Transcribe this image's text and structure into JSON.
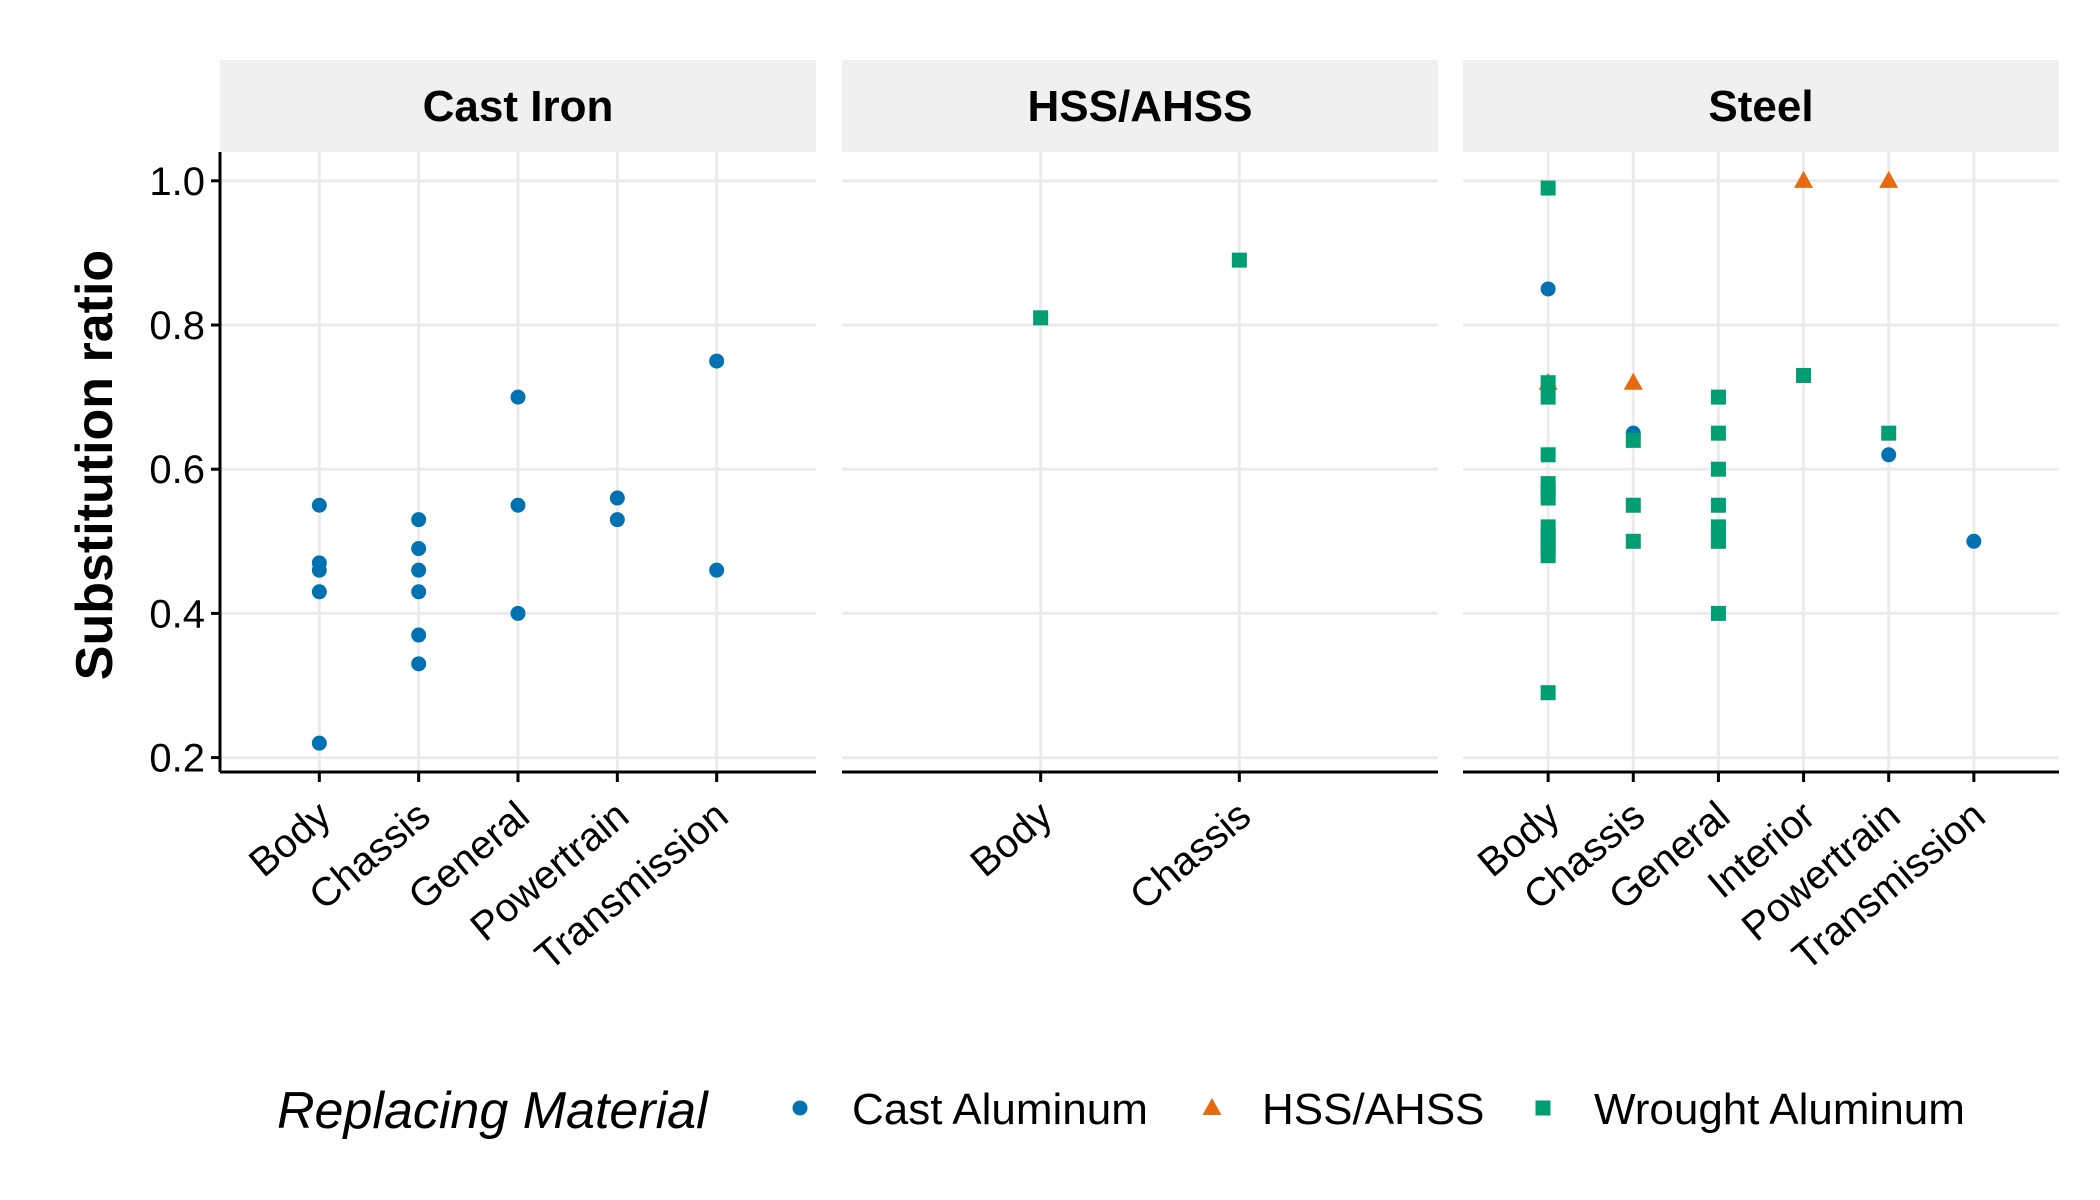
{
  "chart_data": {
    "type": "scatter",
    "ylabel": "Substitution ratio",
    "ylim": [
      0.18,
      1.04
    ],
    "y_ticks": [
      "0.2",
      "0.4",
      "0.6",
      "0.8",
      "1.0"
    ],
    "grid": true,
    "legend": {
      "title": "Replacing Material",
      "position": "bottom",
      "items": [
        {
          "name": "Cast Aluminum",
          "shape": "circle",
          "color": "#0072B2"
        },
        {
          "name": "HSS/AHSS",
          "shape": "triangle",
          "color": "#E66A0F"
        },
        {
          "name": "Wrought Aluminum",
          "shape": "square",
          "color": "#009E73"
        }
      ]
    },
    "facets": [
      {
        "title": "Cast Iron",
        "categories": [
          "Body",
          "Chassis",
          "General",
          "Powertrain",
          "Transmission"
        ],
        "points": [
          {
            "x": "Body",
            "y": 0.55,
            "series": "Cast Aluminum"
          },
          {
            "x": "Body",
            "y": 0.47,
            "series": "Cast Aluminum"
          },
          {
            "x": "Body",
            "y": 0.46,
            "series": "Cast Aluminum"
          },
          {
            "x": "Body",
            "y": 0.43,
            "series": "Cast Aluminum"
          },
          {
            "x": "Body",
            "y": 0.22,
            "series": "Cast Aluminum"
          },
          {
            "x": "Chassis",
            "y": 0.53,
            "series": "Cast Aluminum"
          },
          {
            "x": "Chassis",
            "y": 0.49,
            "series": "Cast Aluminum"
          },
          {
            "x": "Chassis",
            "y": 0.46,
            "series": "Cast Aluminum"
          },
          {
            "x": "Chassis",
            "y": 0.43,
            "series": "Cast Aluminum"
          },
          {
            "x": "Chassis",
            "y": 0.37,
            "series": "Cast Aluminum"
          },
          {
            "x": "Chassis",
            "y": 0.33,
            "series": "Cast Aluminum"
          },
          {
            "x": "General",
            "y": 0.7,
            "series": "Cast Aluminum"
          },
          {
            "x": "General",
            "y": 0.55,
            "series": "Cast Aluminum"
          },
          {
            "x": "General",
            "y": 0.4,
            "series": "Cast Aluminum"
          },
          {
            "x": "Powertrain",
            "y": 0.56,
            "series": "Cast Aluminum"
          },
          {
            "x": "Powertrain",
            "y": 0.53,
            "series": "Cast Aluminum"
          },
          {
            "x": "Transmission",
            "y": 0.75,
            "series": "Cast Aluminum"
          },
          {
            "x": "Transmission",
            "y": 0.46,
            "series": "Cast Aluminum"
          }
        ]
      },
      {
        "title": "HSS/AHSS",
        "categories": [
          "Body",
          "Chassis"
        ],
        "points": [
          {
            "x": "Body",
            "y": 0.81,
            "series": "Wrought Aluminum"
          },
          {
            "x": "Chassis",
            "y": 0.89,
            "series": "Wrought Aluminum"
          }
        ]
      },
      {
        "title": "Steel",
        "categories": [
          "Body",
          "Chassis",
          "General",
          "Interior",
          "Powertrain",
          "Transmission"
        ],
        "points": [
          {
            "x": "Body",
            "y": 0.99,
            "series": "Wrought Aluminum"
          },
          {
            "x": "Body",
            "y": 0.85,
            "series": "Cast Aluminum"
          },
          {
            "x": "Body",
            "y": 0.72,
            "series": "HSS/AHSS"
          },
          {
            "x": "Body",
            "y": 0.72,
            "series": "Wrought Aluminum"
          },
          {
            "x": "Body",
            "y": 0.7,
            "series": "Wrought Aluminum"
          },
          {
            "x": "Body",
            "y": 0.62,
            "series": "Wrought Aluminum"
          },
          {
            "x": "Body",
            "y": 0.58,
            "series": "Wrought Aluminum"
          },
          {
            "x": "Body",
            "y": 0.57,
            "series": "Wrought Aluminum"
          },
          {
            "x": "Body",
            "y": 0.56,
            "series": "Wrought Aluminum"
          },
          {
            "x": "Body",
            "y": 0.52,
            "series": "Wrought Aluminum"
          },
          {
            "x": "Body",
            "y": 0.51,
            "series": "Wrought Aluminum"
          },
          {
            "x": "Body",
            "y": 0.5,
            "series": "Wrought Aluminum"
          },
          {
            "x": "Body",
            "y": 0.49,
            "series": "Wrought Aluminum"
          },
          {
            "x": "Body",
            "y": 0.48,
            "series": "Wrought Aluminum"
          },
          {
            "x": "Body",
            "y": 0.29,
            "series": "Wrought Aluminum"
          },
          {
            "x": "Chassis",
            "y": 0.72,
            "series": "HSS/AHSS"
          },
          {
            "x": "Chassis",
            "y": 0.65,
            "series": "Cast Aluminum"
          },
          {
            "x": "Chassis",
            "y": 0.64,
            "series": "Wrought Aluminum"
          },
          {
            "x": "Chassis",
            "y": 0.55,
            "series": "Wrought Aluminum"
          },
          {
            "x": "Chassis",
            "y": 0.5,
            "series": "Wrought Aluminum"
          },
          {
            "x": "General",
            "y": 0.7,
            "series": "Wrought Aluminum"
          },
          {
            "x": "General",
            "y": 0.65,
            "series": "Wrought Aluminum"
          },
          {
            "x": "General",
            "y": 0.6,
            "series": "Wrought Aluminum"
          },
          {
            "x": "General",
            "y": 0.55,
            "series": "Wrought Aluminum"
          },
          {
            "x": "General",
            "y": 0.52,
            "series": "Wrought Aluminum"
          },
          {
            "x": "General",
            "y": 0.51,
            "series": "Wrought Aluminum"
          },
          {
            "x": "General",
            "y": 0.5,
            "series": "Wrought Aluminum"
          },
          {
            "x": "General",
            "y": 0.4,
            "series": "Wrought Aluminum"
          },
          {
            "x": "Interior",
            "y": 1.0,
            "series": "HSS/AHSS"
          },
          {
            "x": "Interior",
            "y": 0.73,
            "series": "Wrought Aluminum"
          },
          {
            "x": "Powertrain",
            "y": 1.0,
            "series": "HSS/AHSS"
          },
          {
            "x": "Powertrain",
            "y": 0.65,
            "series": "Wrought Aluminum"
          },
          {
            "x": "Powertrain",
            "y": 0.62,
            "series": "Cast Aluminum"
          },
          {
            "x": "Transmission",
            "y": 0.5,
            "series": "Cast Aluminum"
          }
        ]
      }
    ]
  }
}
